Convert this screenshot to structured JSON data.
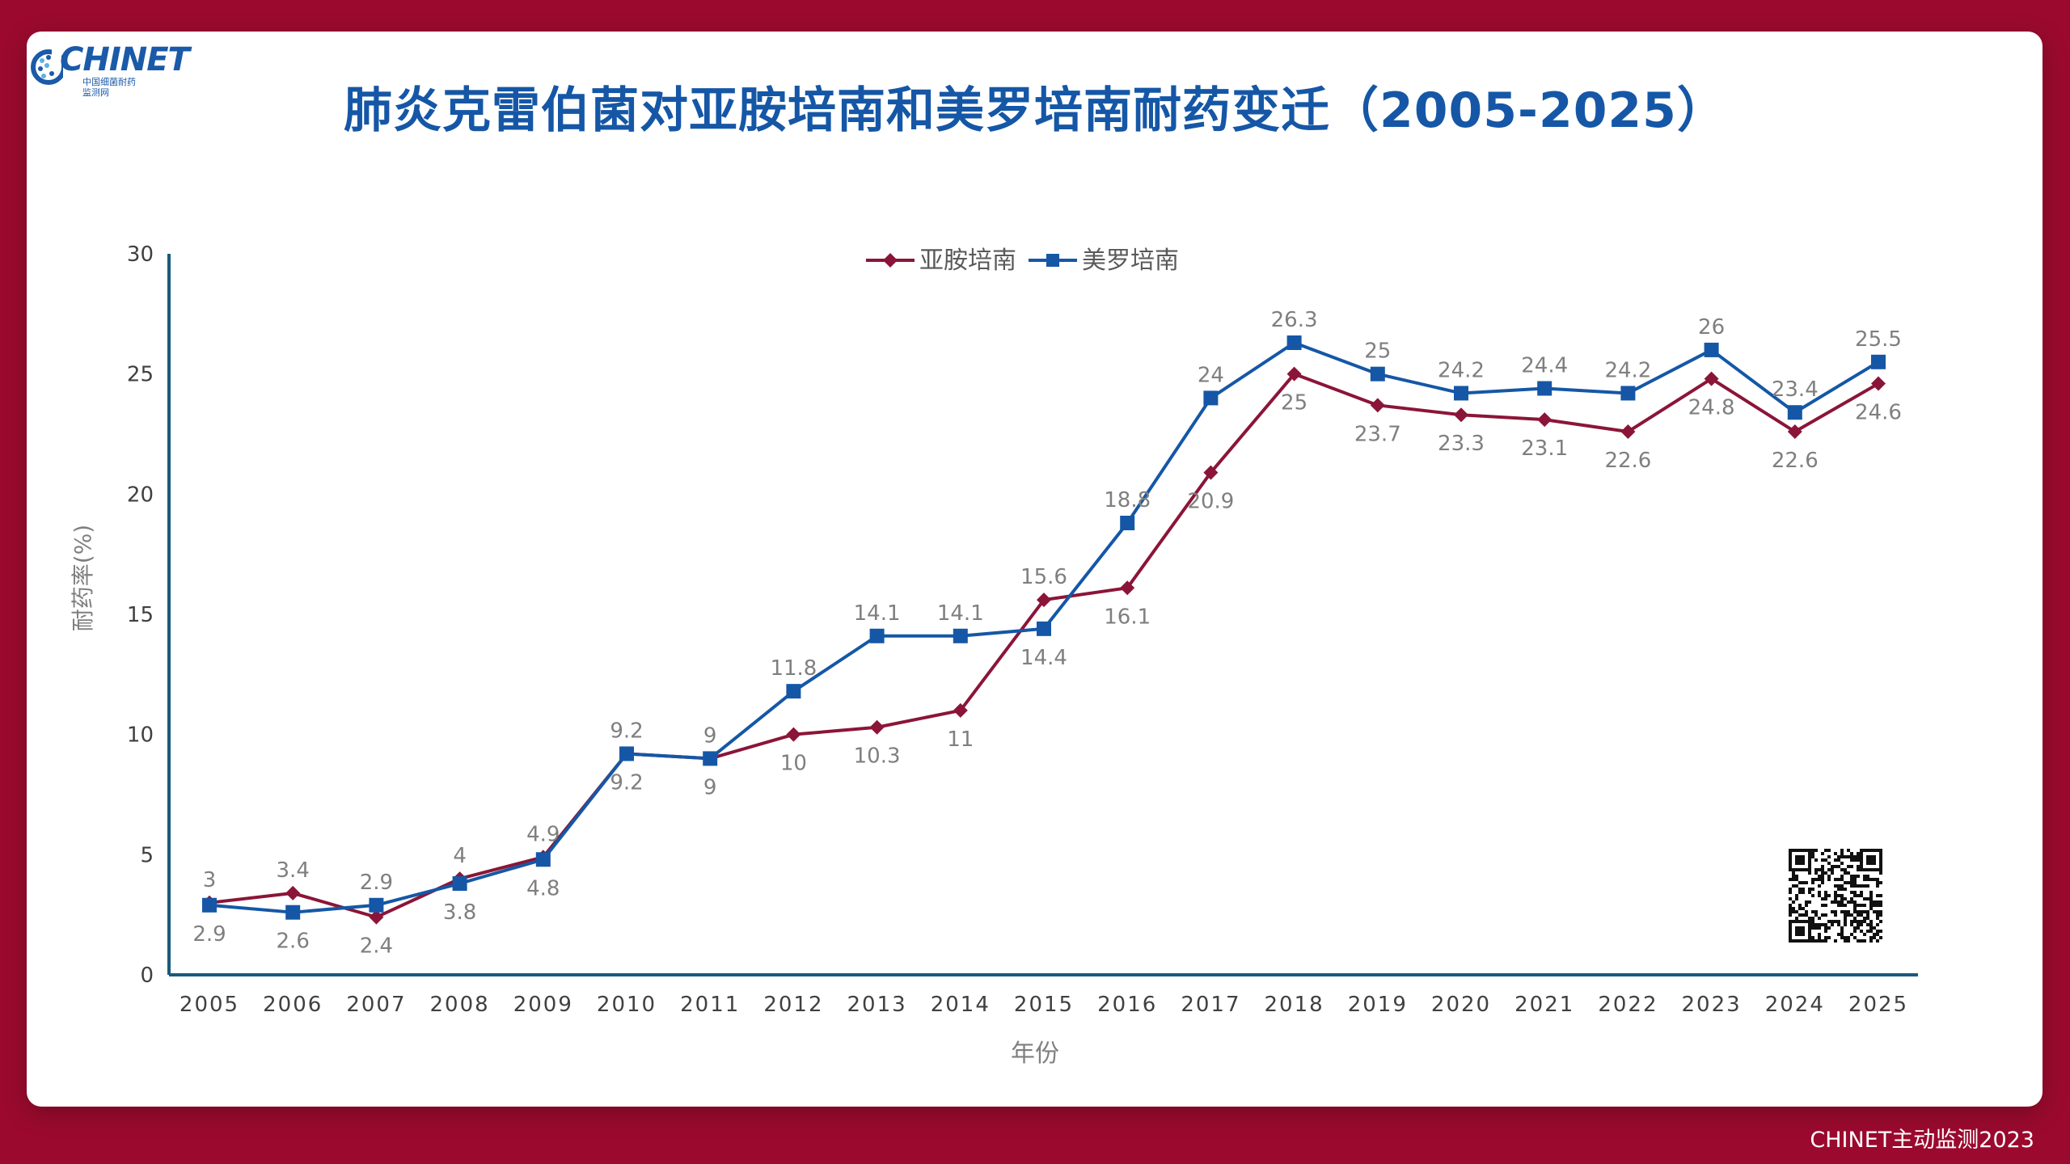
{
  "logo": {
    "wordmark": "CHINET",
    "subtitle_line1": "中国细菌耐药",
    "subtitle_line2": "监测网"
  },
  "title": "肺炎克雷伯菌对亚胺培南和美罗培南耐药变迁（2005-2025）",
  "footer": "CHINET主动监测2023",
  "colors": {
    "series1": "#8b1538",
    "series2": "#1557a6",
    "background": "#9b0a2e",
    "axis": "#1a5a7a",
    "label": "#7f7f7f"
  },
  "chart_data": {
    "type": "line",
    "title": "肺炎克雷伯菌对亚胺培南和美罗培南耐药变迁（2005-2025）",
    "xlabel": "年份",
    "ylabel": "耐药率(%)",
    "ylim": [
      0,
      30
    ],
    "yticks": [
      0,
      5,
      10,
      15,
      20,
      25,
      30
    ],
    "x": [
      "2005",
      "2006",
      "2007",
      "2008",
      "2009",
      "2010",
      "2011",
      "2012",
      "2013",
      "2014",
      "2015",
      "2016",
      "2017",
      "2018",
      "2019",
      "2020",
      "2021",
      "2022",
      "2023",
      "2024",
      "2025"
    ],
    "legend": "top-center",
    "grid": false,
    "series": [
      {
        "name": "亚胺培南",
        "marker": "diamond",
        "values": [
          3,
          3.4,
          2.4,
          4,
          4.9,
          9.2,
          9,
          10,
          10.3,
          11,
          15.6,
          16.1,
          20.9,
          25,
          23.7,
          23.3,
          23.1,
          22.6,
          24.8,
          22.6,
          24.6
        ]
      },
      {
        "name": "美罗培南",
        "marker": "square",
        "values": [
          2.9,
          2.6,
          2.9,
          3.8,
          4.8,
          9.2,
          9,
          11.8,
          14.1,
          14.1,
          14.4,
          18.8,
          24,
          26.3,
          25,
          24.2,
          24.4,
          24.2,
          26,
          23.4,
          25.5
        ]
      }
    ]
  }
}
